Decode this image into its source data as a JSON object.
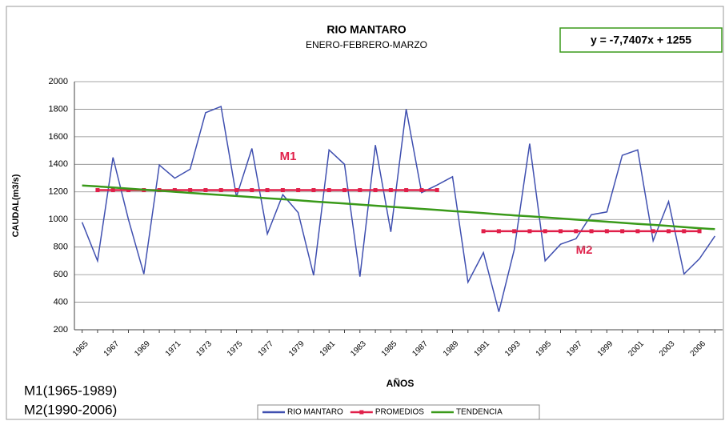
{
  "chart_data": {
    "type": "line",
    "title": "RIO MANTARO",
    "subtitle": "ENERO-FEBRERO-MARZO",
    "y_label": "CAUDAL(m3/s)",
    "x_label": "AÑOS",
    "annotations": {
      "equation": "y = -7,7407x + 1255",
      "m1": "M1",
      "m2": "M2",
      "note1": "M1(1965-1989)",
      "note2": "M2(1990-2006)"
    },
    "categories": [
      "1965",
      null,
      "1967",
      null,
      "1969",
      null,
      "1971",
      null,
      "1973",
      null,
      "1975",
      null,
      "1977",
      null,
      "1979",
      null,
      "1981",
      null,
      "1983",
      null,
      "1985",
      null,
      "1987",
      null,
      "1989",
      null,
      "1991",
      null,
      "1993",
      null,
      "1995",
      null,
      "1997",
      null,
      "1999",
      null,
      "2001",
      null,
      "2003",
      null,
      "2006",
      null
    ],
    "series": [
      {
        "name": "RIO MANTARO",
        "color": "#4050b0",
        "values": [
          980,
          700,
          1450,
          1000,
          605,
          1395,
          1300,
          1365,
          1775,
          1820,
          1165,
          1515,
          895,
          1180,
          1050,
          595,
          1505,
          1400,
          585,
          1540,
          910,
          1800,
          1195,
          1250,
          1310,
          545,
          760,
          330,
          780,
          1550,
          700,
          820,
          860,
          1035,
          1055,
          1465,
          1505,
          845,
          1130,
          605,
          715,
          880
        ]
      },
      {
        "name": "PROMEDIOS",
        "color": "#e0204a",
        "values": [
          null,
          1213,
          1213,
          1213,
          1213,
          1213,
          1213,
          1213,
          1213,
          1213,
          1213,
          1213,
          1213,
          1213,
          1213,
          1213,
          1213,
          1213,
          1213,
          1213,
          1213,
          1213,
          1213,
          1213,
          null,
          null,
          915,
          915,
          915,
          915,
          915,
          915,
          915,
          915,
          915,
          915,
          915,
          915,
          915,
          915,
          915,
          null
        ]
      },
      {
        "name": "TENDENCIA",
        "color": "#3a9a1a",
        "values": [
          1247,
          1240,
          1232,
          1224,
          1216,
          1209,
          1201,
          1193,
          1185,
          1178,
          1170,
          1162,
          1154,
          1147,
          1139,
          1131,
          1123,
          1116,
          1108,
          1100,
          1092,
          1085,
          1077,
          1069,
          1061,
          1054,
          1046,
          1038,
          1030,
          1023,
          1015,
          1007,
          999,
          992,
          984,
          976,
          968,
          961,
          953,
          945,
          937,
          930
        ]
      }
    ],
    "ylim": [
      200,
      2000
    ],
    "yticks": [
      200,
      400,
      600,
      800,
      1000,
      1200,
      1400,
      1600,
      1800,
      2000
    ],
    "grid": true,
    "legend": "bottom"
  }
}
